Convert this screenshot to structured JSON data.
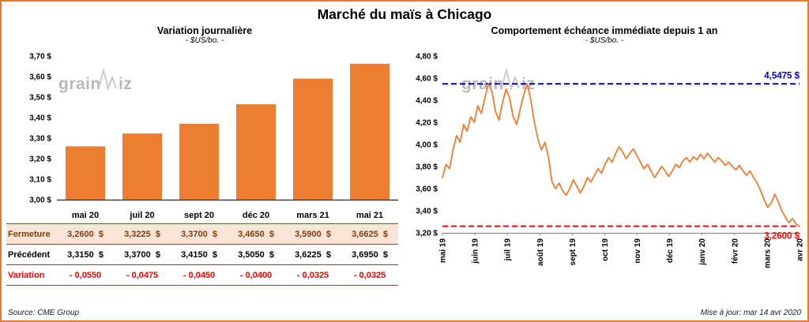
{
  "page_title": "Marché du maïs à Chicago",
  "watermark": "grainwiz",
  "footer": {
    "source": "Source: CME Group",
    "updated": "Mise à jour: mar 14 avr 2020"
  },
  "table": {
    "rows": [
      {
        "label": "Fermeture",
        "style": "fermeture",
        "cells": [
          "3,2600  $",
          "3,3225  $",
          "3,3700  $",
          "3,4650  $",
          "3,5900  $",
          "3,6625  $"
        ]
      },
      {
        "label": "Précédent",
        "style": "precedent",
        "cells": [
          "3,3150  $",
          "3,3700  $",
          "3,4150  $",
          "3,5050  $",
          "3,6225  $",
          "3,6950  $"
        ]
      },
      {
        "label": "Variation",
        "style": "variation",
        "cells": [
          "- 0,0550",
          "- 0,0475",
          "- 0,0450",
          "- 0,0400",
          "- 0,0325",
          "- 0,0325"
        ]
      }
    ]
  },
  "chart_data": [
    {
      "type": "bar",
      "title": "Variation journalière",
      "subtitle": "- $US/bo. -",
      "categories": [
        "mai 20",
        "juil 20",
        "sept 20",
        "déc 20",
        "mars 21",
        "mai 21"
      ],
      "values": [
        3.26,
        3.3225,
        3.37,
        3.465,
        3.59,
        3.6625
      ],
      "ylim": [
        3.0,
        3.7
      ],
      "ytick_step": 0.1,
      "ytick_format": "fr_dollar_2dec",
      "grid": false,
      "bar_color": "#ED7D31"
    },
    {
      "type": "line",
      "title": "Comportement échéance immédiate depuis 1 an",
      "subtitle": "- $US/bo. -",
      "x_labels": [
        "mai 19",
        "juin 19",
        "juil 19",
        "août 19",
        "sept 19",
        "oct 19",
        "nov 19",
        "déc 19",
        "janv 20",
        "févr 20",
        "mars 20",
        "avr 20"
      ],
      "ylim": [
        3.2,
        4.8
      ],
      "ytick_step": 0.2,
      "ytick_format": "fr_dollar_2dec",
      "grid": false,
      "line_color": "#ED7D31",
      "high_line": {
        "value": 4.5475,
        "label": "4,5475 $",
        "color": "#0000CC"
      },
      "low_line": {
        "value": 3.26,
        "label": "3,2600 $",
        "color": "#FF0000"
      },
      "values": [
        3.7,
        3.82,
        3.78,
        3.95,
        4.08,
        4.02,
        4.18,
        4.12,
        4.25,
        4.2,
        4.35,
        4.28,
        4.42,
        4.5475,
        4.48,
        4.3,
        4.22,
        4.38,
        4.5,
        4.42,
        4.25,
        4.18,
        4.32,
        4.45,
        4.5475,
        4.4,
        4.2,
        4.05,
        3.95,
        4.02,
        3.88,
        3.66,
        3.6,
        3.65,
        3.58,
        3.54,
        3.6,
        3.68,
        3.62,
        3.56,
        3.62,
        3.7,
        3.66,
        3.72,
        3.78,
        3.74,
        3.82,
        3.88,
        3.84,
        3.92,
        3.98,
        3.93,
        3.87,
        3.92,
        3.96,
        3.9,
        3.84,
        3.78,
        3.82,
        3.76,
        3.7,
        3.75,
        3.8,
        3.76,
        3.71,
        3.76,
        3.82,
        3.79,
        3.85,
        3.88,
        3.84,
        3.89,
        3.86,
        3.91,
        3.87,
        3.92,
        3.88,
        3.84,
        3.88,
        3.85,
        3.81,
        3.84,
        3.8,
        3.77,
        3.81,
        3.76,
        3.72,
        3.76,
        3.7,
        3.65,
        3.58,
        3.5,
        3.43,
        3.47,
        3.55,
        3.48,
        3.4,
        3.34,
        3.29,
        3.33,
        3.28,
        3.26
      ]
    }
  ]
}
